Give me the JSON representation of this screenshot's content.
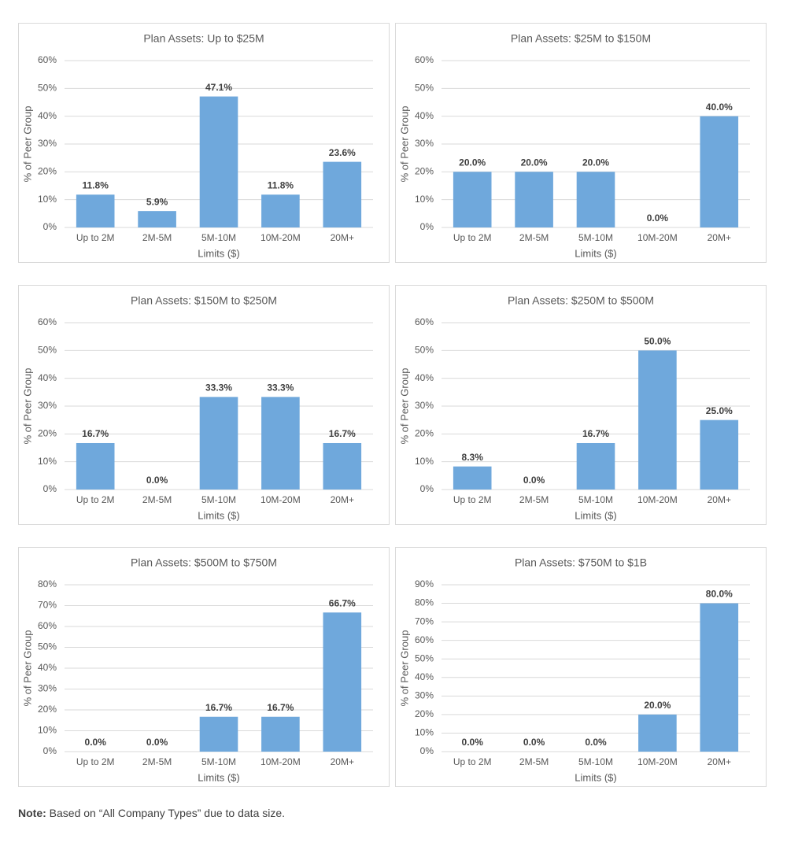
{
  "chart_data": [
    {
      "type": "bar",
      "title": "Plan Assets: Up to $25M",
      "x_label": "Limits ($)",
      "y_label": "% of Peer Group",
      "categories": [
        "Up to 2M",
        "2M-5M",
        "5M-10M",
        "10M-20M",
        "20M+"
      ],
      "values": [
        11.8,
        5.9,
        47.1,
        11.8,
        23.6
      ],
      "value_labels": [
        "11.8%",
        "5.9%",
        "47.1%",
        "11.8%",
        "23.6%"
      ],
      "color": "#6fa8dc",
      "grid": true,
      "ylim": [
        0,
        60
      ],
      "yticks": [
        {
          "value": 0,
          "label": "0%"
        },
        {
          "value": 10,
          "label": "10%"
        },
        {
          "value": 20,
          "label": "20%"
        },
        {
          "value": 30,
          "label": "30%"
        },
        {
          "value": 40,
          "label": "40%"
        },
        {
          "value": 50,
          "label": "50%"
        },
        {
          "value": 60,
          "label": "60%"
        }
      ]
    },
    {
      "type": "bar",
      "title": "Plan Assets: $25M to $150M",
      "x_label": "Limits ($)",
      "y_label": "% of Peer Group",
      "categories": [
        "Up to 2M",
        "2M-5M",
        "5M-10M",
        "10M-20M",
        "20M+"
      ],
      "values": [
        20.0,
        20.0,
        20.0,
        0.0,
        40.0
      ],
      "value_labels": [
        "20.0%",
        "20.0%",
        "20.0%",
        "0.0%",
        "40.0%"
      ],
      "color": "#6fa8dc",
      "grid": true,
      "ylim": [
        0,
        60
      ],
      "yticks": [
        {
          "value": 0,
          "label": "0%"
        },
        {
          "value": 10,
          "label": "10%"
        },
        {
          "value": 20,
          "label": "20%"
        },
        {
          "value": 30,
          "label": "30%"
        },
        {
          "value": 40,
          "label": "40%"
        },
        {
          "value": 50,
          "label": "50%"
        },
        {
          "value": 60,
          "label": "60%"
        }
      ]
    },
    {
      "type": "bar",
      "title": "Plan Assets: $150M to $250M",
      "x_label": "Limits ($)",
      "y_label": "% of Peer Group",
      "categories": [
        "Up to 2M",
        "2M-5M",
        "5M-10M",
        "10M-20M",
        "20M+"
      ],
      "values": [
        16.7,
        0.0,
        33.3,
        33.3,
        16.7
      ],
      "value_labels": [
        "16.7%",
        "0.0%",
        "33.3%",
        "33.3%",
        "16.7%"
      ],
      "color": "#6fa8dc",
      "grid": true,
      "ylim": [
        0,
        60
      ],
      "yticks": [
        {
          "value": 0,
          "label": "0%"
        },
        {
          "value": 10,
          "label": "10%"
        },
        {
          "value": 20,
          "label": "20%"
        },
        {
          "value": 30,
          "label": "30%"
        },
        {
          "value": 40,
          "label": "40%"
        },
        {
          "value": 50,
          "label": "50%"
        },
        {
          "value": 60,
          "label": "60%"
        }
      ]
    },
    {
      "type": "bar",
      "title": "Plan Assets: $250M to $500M",
      "x_label": "Limits ($)",
      "y_label": "% of Peer Group",
      "categories": [
        "Up to 2M",
        "2M-5M",
        "5M-10M",
        "10M-20M",
        "20M+"
      ],
      "values": [
        8.3,
        0.0,
        16.7,
        50.0,
        25.0
      ],
      "value_labels": [
        "8.3%",
        "0.0%",
        "16.7%",
        "50.0%",
        "25.0%"
      ],
      "color": "#6fa8dc",
      "grid": true,
      "ylim": [
        0,
        60
      ],
      "yticks": [
        {
          "value": 0,
          "label": "0%"
        },
        {
          "value": 10,
          "label": "10%"
        },
        {
          "value": 20,
          "label": "20%"
        },
        {
          "value": 30,
          "label": "30%"
        },
        {
          "value": 40,
          "label": "40%"
        },
        {
          "value": 50,
          "label": "50%"
        },
        {
          "value": 60,
          "label": "60%"
        }
      ]
    },
    {
      "type": "bar",
      "title": "Plan Assets: $500M to $750M",
      "x_label": "Limits ($)",
      "y_label": "% of Peer Group",
      "categories": [
        "Up to 2M",
        "2M-5M",
        "5M-10M",
        "10M-20M",
        "20M+"
      ],
      "values": [
        0.0,
        0.0,
        16.7,
        16.7,
        66.7
      ],
      "value_labels": [
        "0.0%",
        "0.0%",
        "16.7%",
        "16.7%",
        "66.7%"
      ],
      "color": "#6fa8dc",
      "grid": true,
      "ylim": [
        0,
        80
      ],
      "yticks": [
        {
          "value": 0,
          "label": "0%"
        },
        {
          "value": 10,
          "label": "10%"
        },
        {
          "value": 20,
          "label": "20%"
        },
        {
          "value": 30,
          "label": "30%"
        },
        {
          "value": 40,
          "label": "40%"
        },
        {
          "value": 50,
          "label": "50%"
        },
        {
          "value": 60,
          "label": "60%"
        },
        {
          "value": 70,
          "label": "70%"
        },
        {
          "value": 80,
          "label": "80%"
        }
      ]
    },
    {
      "type": "bar",
      "title": "Plan Assets: $750M to $1B",
      "x_label": "Limits ($)",
      "y_label": "% of Peer Group",
      "categories": [
        "Up to 2M",
        "2M-5M",
        "5M-10M",
        "10M-20M",
        "20M+"
      ],
      "values": [
        0.0,
        0.0,
        0.0,
        20.0,
        80.0
      ],
      "value_labels": [
        "0.0%",
        "0.0%",
        "0.0%",
        "20.0%",
        "80.0%"
      ],
      "color": "#6fa8dc",
      "grid": true,
      "ylim": [
        0,
        90
      ],
      "yticks": [
        {
          "value": 0,
          "label": "0%"
        },
        {
          "value": 10,
          "label": "10%"
        },
        {
          "value": 20,
          "label": "20%"
        },
        {
          "value": 30,
          "label": "30%"
        },
        {
          "value": 40,
          "label": "40%"
        },
        {
          "value": 50,
          "label": "50%"
        },
        {
          "value": 60,
          "label": "60%"
        },
        {
          "value": 70,
          "label": "70%"
        },
        {
          "value": 80,
          "label": "80%"
        },
        {
          "value": 90,
          "label": "90%"
        }
      ]
    }
  ],
  "note": {
    "label": "Note:",
    "text": "Based on “All Company Types” due to data size."
  }
}
